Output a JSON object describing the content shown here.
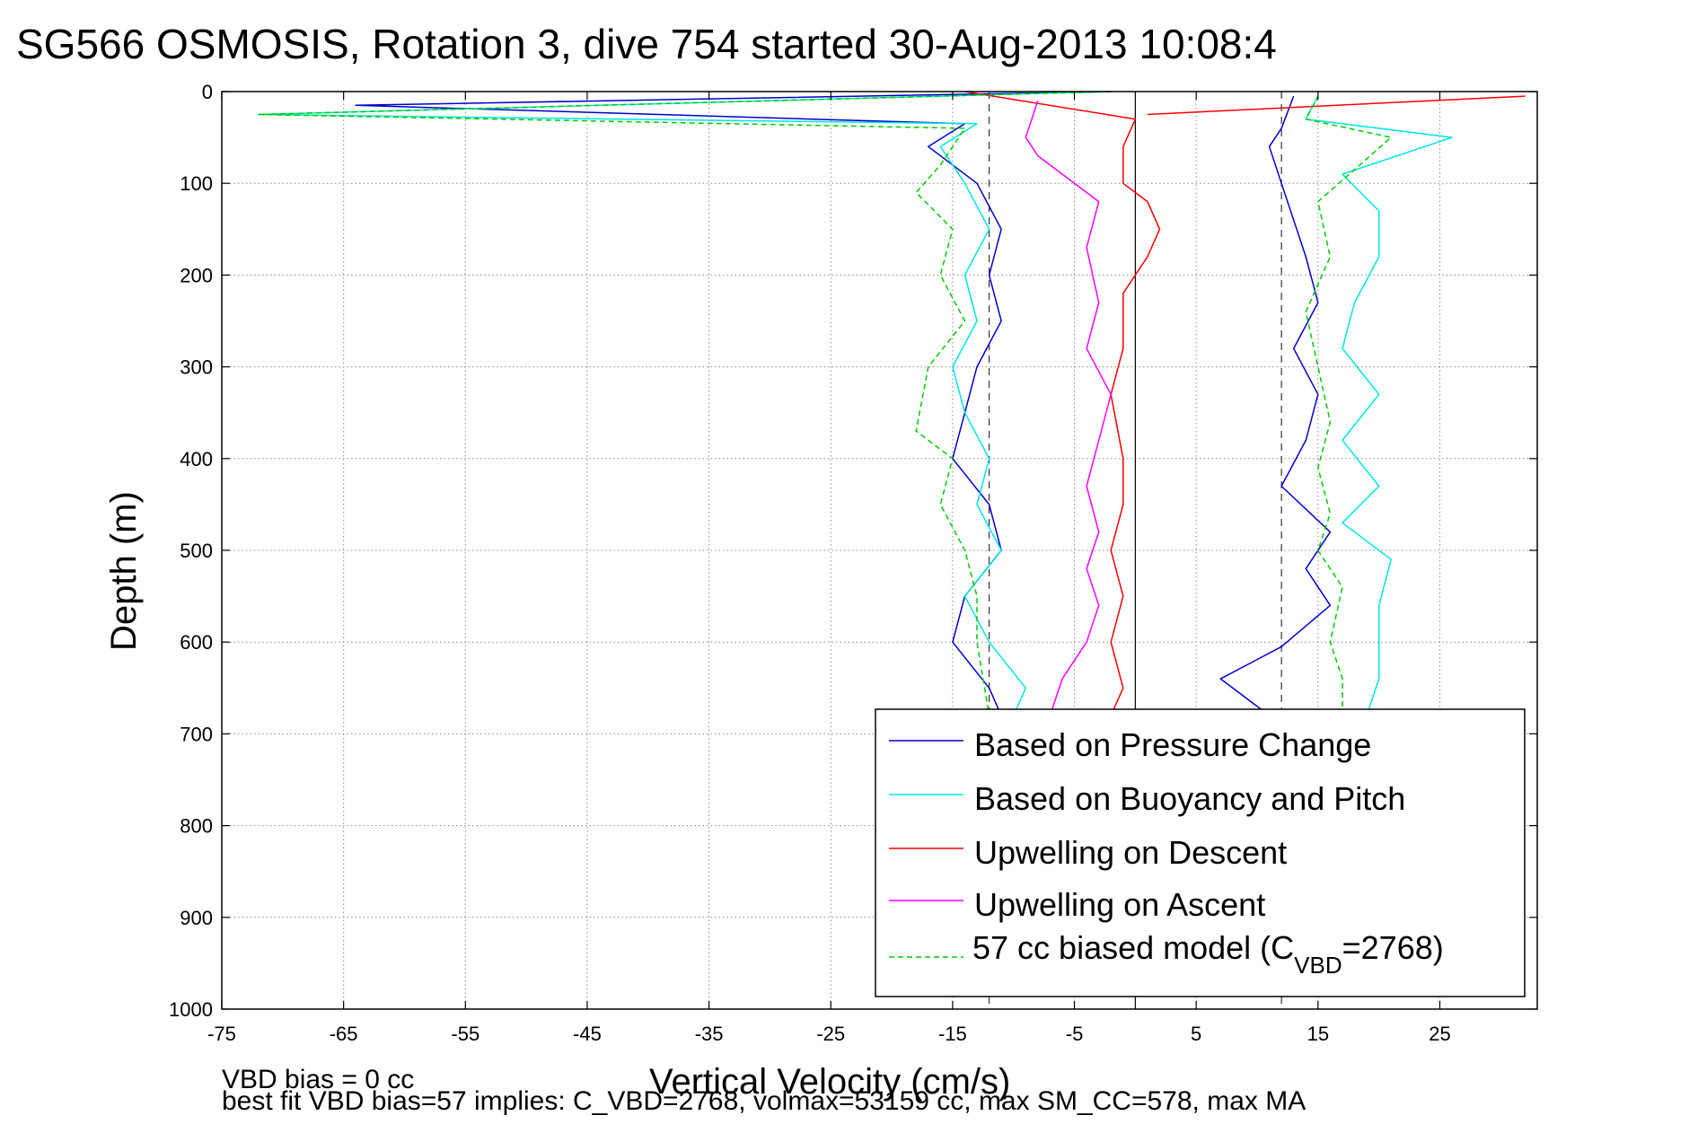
{
  "chart_data": {
    "type": "line",
    "title": "SG566 OSMOSIS, Rotation 3, dive 754 started 30-Aug-2013 10:08:4",
    "xlabel": "Vertical Velocity (cm/s)",
    "ylabel": "Depth (m)",
    "xlim": [
      -75,
      33
    ],
    "ylim": [
      0,
      1000
    ],
    "y_reversed": true,
    "grid": true,
    "x_ticks": [
      "-75",
      "-65",
      "-55",
      "-45",
      "-35",
      "-25",
      "-15",
      "-5",
      "5",
      "15",
      "25"
    ],
    "y_ticks": [
      "0",
      "100",
      "200",
      "300",
      "400",
      "500",
      "600",
      "700",
      "800",
      "900",
      "1000"
    ],
    "reference_lines": [
      {
        "x": -12,
        "style": "dashed"
      },
      {
        "x": 0,
        "style": "solid"
      },
      {
        "x": 12,
        "style": "dashed"
      }
    ],
    "legend_position": "bottom-right",
    "series": [
      {
        "name": "Based on Pressure Change",
        "color": "#0000cc",
        "segments": [
          {
            "x": [
              -2,
              -64,
              -14,
              -17,
              -13,
              -11,
              -12,
              -11,
              -13,
              -14,
              -15,
              -12,
              -11,
              -14,
              -15,
              -12,
              -11
            ],
            "y": [
              0,
              15,
              35,
              60,
              100,
              150,
              200,
              250,
              300,
              350,
              400,
              450,
              500,
              550,
              600,
              650,
              680
            ]
          },
          {
            "x": [
              11,
              7,
              12,
              16,
              14,
              16,
              12,
              14,
              15,
              13,
              15,
              14,
              13,
              12,
              11,
              12,
              13
            ],
            "y": [
              680,
              640,
              605,
              560,
              520,
              480,
              430,
              380,
              330,
              280,
              230,
              180,
              140,
              100,
              60,
              40,
              5
            ]
          }
        ]
      },
      {
        "name": "Based on Buoyancy and Pitch",
        "color": "#00e5e5",
        "segments": [
          {
            "x": [
              -2,
              -72,
              -13,
              -16,
              -14,
              -12,
              -14,
              -13,
              -15,
              -14,
              -12,
              -13,
              -11,
              -14,
              -12,
              -9,
              -10
            ],
            "y": [
              0,
              25,
              35,
              60,
              100,
              150,
              200,
              250,
              300,
              350,
              400,
              450,
              500,
              550,
              600,
              650,
              680
            ]
          },
          {
            "x": [
              19,
              20,
              20,
              20,
              21,
              17,
              20,
              17,
              20,
              17,
              18,
              20,
              20,
              17,
              26,
              14,
              15
            ],
            "y": [
              680,
              640,
              600,
              560,
              510,
              470,
              430,
              380,
              330,
              280,
              230,
              180,
              130,
              90,
              50,
              30,
              5
            ]
          }
        ]
      },
      {
        "name": "Upwelling on Descent",
        "color": "#ff0000",
        "segments": [
          {
            "x": [
              -14,
              0,
              -1,
              -1,
              1,
              2,
              1,
              -1,
              -1,
              -2,
              -1,
              -1,
              -2,
              -1,
              -2,
              -1,
              -2
            ],
            "y": [
              0,
              30,
              60,
              100,
              120,
              150,
              180,
              220,
              280,
              330,
              400,
              450,
              500,
              550,
              600,
              650,
              680
            ]
          },
          {
            "x": [
              32,
              1
            ],
            "y": [
              5,
              25
            ]
          }
        ]
      },
      {
        "name": "Upwelling on Ascent",
        "color": "#ff00ff",
        "segments": [
          {
            "x": [
              -7,
              -6,
              -4,
              -3,
              -4,
              -3,
              -4,
              -3,
              -2,
              -4,
              -3,
              -4,
              -3,
              -8,
              -9,
              -8
            ],
            "y": [
              680,
              640,
              600,
              560,
              520,
              480,
              430,
              380,
              330,
              280,
              230,
              170,
              120,
              70,
              50,
              10
            ]
          }
        ]
      },
      {
        "name": "57 cc biased model (C",
        "legend_subscript": "VBD",
        "legend_suffix": "=2768)",
        "color": "#00cc00",
        "segments": [
          {
            "x": [
              -2,
              -72,
              -14,
              -16,
              -18,
              -15,
              -16,
              -14,
              -17,
              -18,
              -15,
              -16,
              -14,
              -13,
              -13,
              -12
            ],
            "y": [
              0,
              25,
              40,
              80,
              110,
              150,
              200,
              250,
              300,
              370,
              400,
              450,
              500,
              550,
              600,
              680
            ]
          },
          {
            "x": [
              17,
              17,
              16,
              17,
              15,
              16,
              15,
              16,
              15,
              14,
              16,
              15,
              21,
              14,
              15
            ],
            "y": [
              680,
              640,
              600,
              540,
              500,
              460,
              410,
              360,
              300,
              240,
              180,
              120,
              50,
              30,
              5
            ]
          }
        ]
      }
    ],
    "footer_lines": [
      "VBD bias = 0 cc",
      "best fit VBD bias=57 implies: C_VBD=2768, volmax=53159 cc, max SM_CC=578, max MA"
    ]
  }
}
